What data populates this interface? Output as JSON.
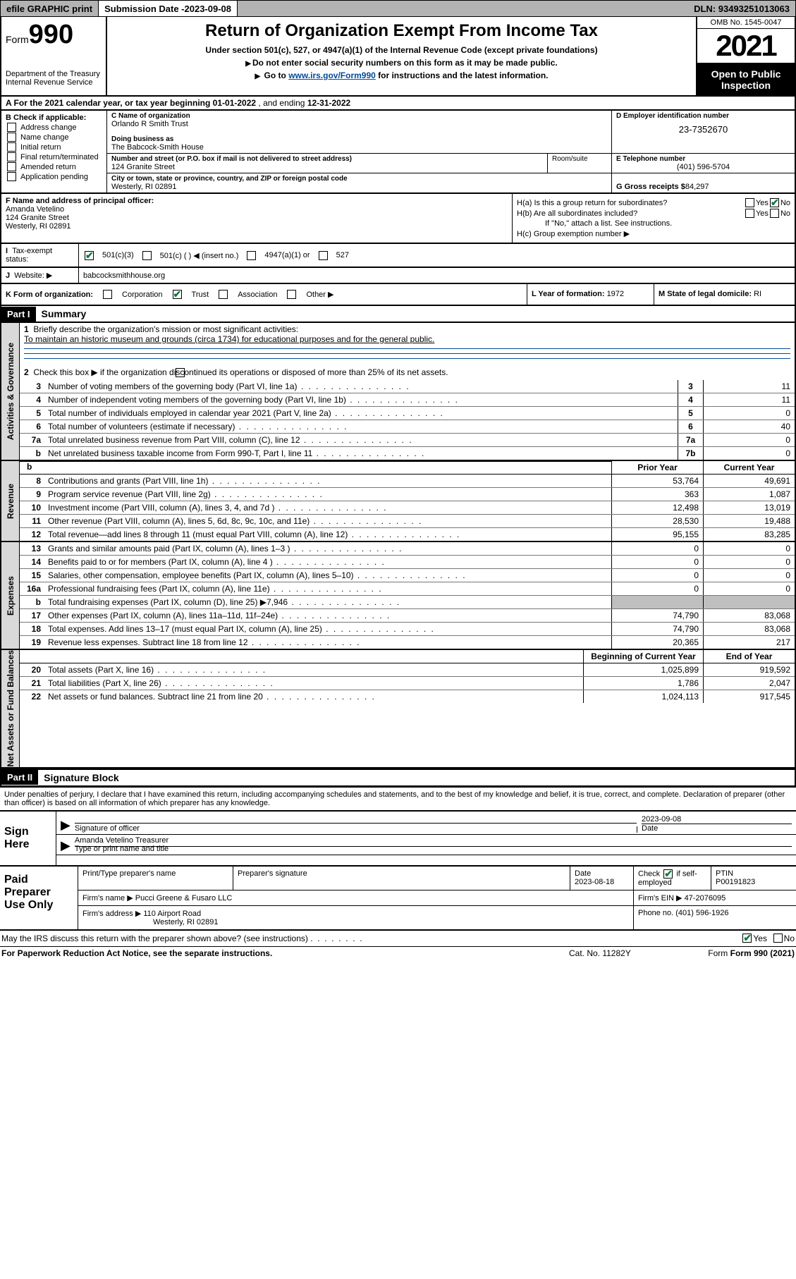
{
  "topbar": {
    "efile": "efile GRAPHIC print",
    "submission_label": "Submission Date - ",
    "submission_date": "2023-09-08",
    "dln_label": "DLN: ",
    "dln": "93493251013063"
  },
  "header": {
    "form_prefix": "Form",
    "form_number": "990",
    "dept": "Department of the Treasury\nInternal Revenue Service",
    "title": "Return of Organization Exempt From Income Tax",
    "sub1": "Under section 501(c), 527, or 4947(a)(1) of the Internal Revenue Code (except private foundations)",
    "sub2": "Do not enter social security numbers on this form as it may be made public.",
    "sub3_pre": "Go to ",
    "sub3_link": "www.irs.gov/Form990",
    "sub3_post": " for instructions and the latest information.",
    "omb": "OMB No. 1545-0047",
    "year": "2021",
    "open_public": "Open to Public Inspection"
  },
  "lineA": {
    "prefix": "A For the 2021 calendar year, or tax year beginning ",
    "begin": "01-01-2022",
    "mid": " , and ending ",
    "end": "12-31-2022"
  },
  "B": {
    "label": "B Check if applicable:",
    "opts": [
      "Address change",
      "Name change",
      "Initial return",
      "Final return/terminated",
      "Amended return",
      "Application pending"
    ]
  },
  "C": {
    "name_lbl": "C Name of organization",
    "name": "Orlando R Smith Trust",
    "dba_lbl": "Doing business as",
    "dba": "The Babcock-Smith House",
    "street_lbl": "Number and street (or P.O. box if mail is not delivered to street address)",
    "street": "124 Granite Street",
    "room_lbl": "Room/suite",
    "city_lbl": "City or town, state or province, country, and ZIP or foreign postal code",
    "city": "Westerly, RI  02891"
  },
  "D": {
    "lbl": "D Employer identification number",
    "val": "23-7352670"
  },
  "E": {
    "lbl": "E Telephone number",
    "val": "(401) 596-5704"
  },
  "G": {
    "lbl": "G Gross receipts $ ",
    "val": "84,297"
  },
  "F": {
    "lbl": "F Name and address of principal officer:",
    "name": "Amanda Vetelino",
    "addr1": "124 Granite Street",
    "addr2": "Westerly, RI  02891"
  },
  "H": {
    "a": "H(a)  Is this a group return for subordinates?",
    "b": "H(b)  Are all subordinates included?",
    "b_note": "If \"No,\" attach a list. See instructions.",
    "c": "H(c)  Group exemption number ▶",
    "yes": "Yes",
    "no": "No"
  },
  "I": {
    "lbl": "Tax-exempt status:",
    "o1": "501(c)(3)",
    "o2": "501(c) (  ) ◀ (insert no.)",
    "o3": "4947(a)(1) or",
    "o4": "527"
  },
  "J": {
    "lbl": "Website: ▶",
    "val": "babcocksmithhouse.org"
  },
  "K": {
    "lbl": "K Form of organization:",
    "opts": [
      "Corporation",
      "Trust",
      "Association",
      "Other ▶"
    ],
    "checked_idx": 1
  },
  "L": {
    "lbl": "L Year of formation: ",
    "val": "1972"
  },
  "M": {
    "lbl": "M State of legal domicile: ",
    "val": "RI"
  },
  "parts": {
    "p1": "Part I",
    "p1t": "Summary",
    "p2": "Part II",
    "p2t": "Signature Block"
  },
  "tabs": {
    "gov": "Activities & Governance",
    "rev": "Revenue",
    "exp": "Expenses",
    "net": "Net Assets or Fund Balances"
  },
  "q1": {
    "text": "Briefly describe the organization's mission or most significant activities:",
    "mission": "To maintain an historic museum and grounds (circa 1734) for educational purposes and for the general public."
  },
  "q2": "Check this box ▶        if the organization discontinued its operations or disposed of more than 25% of its net assets.",
  "govlines": [
    {
      "n": "3",
      "t": "Number of voting members of the governing body (Part VI, line 1a)",
      "c": "3",
      "v": "11"
    },
    {
      "n": "4",
      "t": "Number of independent voting members of the governing body (Part VI, line 1b)",
      "c": "4",
      "v": "11"
    },
    {
      "n": "5",
      "t": "Total number of individuals employed in calendar year 2021 (Part V, line 2a)",
      "c": "5",
      "v": "0"
    },
    {
      "n": "6",
      "t": "Total number of volunteers (estimate if necessary)",
      "c": "6",
      "v": "40"
    },
    {
      "n": "7a",
      "t": "Total unrelated business revenue from Part VIII, column (C), line 12",
      "c": "7a",
      "v": "0"
    },
    {
      "n": "b",
      "t": "Net unrelated business taxable income from Form 990-T, Part I, line 11",
      "c": "7b",
      "v": "0"
    }
  ],
  "colhdr": {
    "prior": "Prior Year",
    "current": "Current Year"
  },
  "revlines": [
    {
      "n": "8",
      "t": "Contributions and grants (Part VIII, line 1h)",
      "p": "53,764",
      "c": "49,691"
    },
    {
      "n": "9",
      "t": "Program service revenue (Part VIII, line 2g)",
      "p": "363",
      "c": "1,087"
    },
    {
      "n": "10",
      "t": "Investment income (Part VIII, column (A), lines 3, 4, and 7d )",
      "p": "12,498",
      "c": "13,019"
    },
    {
      "n": "11",
      "t": "Other revenue (Part VIII, column (A), lines 5, 6d, 8c, 9c, 10c, and 11e)",
      "p": "28,530",
      "c": "19,488"
    },
    {
      "n": "12",
      "t": "Total revenue—add lines 8 through 11 (must equal Part VIII, column (A), line 12)",
      "p": "95,155",
      "c": "83,285"
    }
  ],
  "explines": [
    {
      "n": "13",
      "t": "Grants and similar amounts paid (Part IX, column (A), lines 1–3 )",
      "p": "0",
      "c": "0"
    },
    {
      "n": "14",
      "t": "Benefits paid to or for members (Part IX, column (A), line 4 )",
      "p": "0",
      "c": "0"
    },
    {
      "n": "15",
      "t": "Salaries, other compensation, employee benefits (Part IX, column (A), lines 5–10)",
      "p": "0",
      "c": "0"
    },
    {
      "n": "16a",
      "t": "Professional fundraising fees (Part IX, column (A), line 11e)",
      "p": "0",
      "c": "0"
    },
    {
      "n": "b",
      "t": "Total fundraising expenses (Part IX, column (D), line 25) ▶7,946",
      "p": "",
      "c": "",
      "shade": true
    },
    {
      "n": "17",
      "t": "Other expenses (Part IX, column (A), lines 11a–11d, 11f–24e)",
      "p": "74,790",
      "c": "83,068"
    },
    {
      "n": "18",
      "t": "Total expenses. Add lines 13–17 (must equal Part IX, column (A), line 25)",
      "p": "74,790",
      "c": "83,068"
    },
    {
      "n": "19",
      "t": "Revenue less expenses. Subtract line 18 from line 12",
      "p": "20,365",
      "c": "217"
    }
  ],
  "nethdr": {
    "b": "Beginning of Current Year",
    "e": "End of Year"
  },
  "netlines": [
    {
      "n": "20",
      "t": "Total assets (Part X, line 16)",
      "p": "1,025,899",
      "c": "919,592"
    },
    {
      "n": "21",
      "t": "Total liabilities (Part X, line 26)",
      "p": "1,786",
      "c": "2,047"
    },
    {
      "n": "22",
      "t": "Net assets or fund balances. Subtract line 21 from line 20",
      "p": "1,024,113",
      "c": "917,545"
    }
  ],
  "sig": {
    "intro": "Under penalties of perjury, I declare that I have examined this return, including accompanying schedules and statements, and to the best of my knowledge and belief, it is true, correct, and complete. Declaration of preparer (other than officer) is based on all information of which preparer has any knowledge.",
    "sign_here": "Sign Here",
    "sig_officer": "Signature of officer",
    "date": "Date",
    "sig_date": "2023-09-08",
    "name_title": "Amanda Vetelino  Treasurer",
    "type_name": "Type or print name and title"
  },
  "prep": {
    "title": "Paid Preparer Use Only",
    "h1": "Print/Type preparer's name",
    "h2": "Preparer's signature",
    "h3": "Date",
    "h3v": "2023-08-18",
    "h4": "Check",
    "h4b": "if self-employed",
    "h5": "PTIN",
    "h5v": "P00191823",
    "firm_name_lbl": "Firm's name    ▶",
    "firm_name": "Pucci Greene & Fusaro LLC",
    "firm_ein_lbl": "Firm's EIN ▶",
    "firm_ein": "47-2076095",
    "firm_addr_lbl": "Firm's address ▶",
    "firm_addr1": "110 Airport Road",
    "firm_addr2": "Westerly, RI  02891",
    "phone_lbl": "Phone no. ",
    "phone": "(401) 596-1926"
  },
  "footer": {
    "discuss": "May the IRS discuss this return with the preparer shown above? (see instructions)",
    "yes": "Yes",
    "no": "No",
    "pra": "For Paperwork Reduction Act Notice, see the separate instructions.",
    "cat": "Cat. No. 11282Y",
    "form": "Form 990 (2021)"
  },
  "colors": {
    "link": "#004b9b",
    "check": "#0a7a3a",
    "shade": "#bfbfbf",
    "topbar": "#b3b3b3"
  }
}
